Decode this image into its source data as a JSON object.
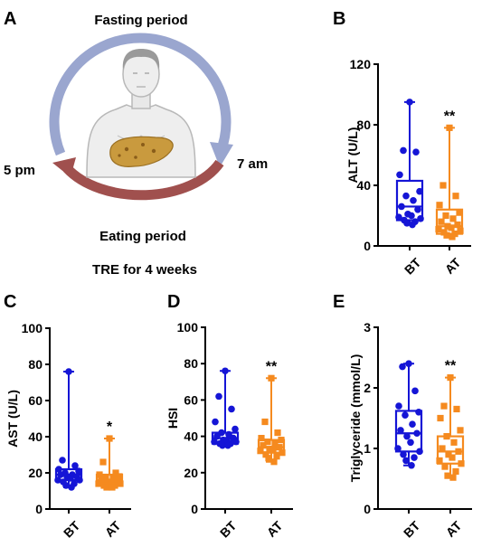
{
  "panels": {
    "a": {
      "letter": "A",
      "top_label": "Fasting period",
      "right_label": "7 am",
      "left_label": "5 pm",
      "bottom_label": "Eating period",
      "caption": "TRE for 4 weeks"
    }
  },
  "colors": {
    "bt": "#1515d6",
    "at": "#f58a1f",
    "fasting_arrow": "#9aa6cf",
    "eating_arrow": "#a0504e",
    "liver": "#c99a3e"
  },
  "chart_data": [
    {
      "id": "b",
      "letter": "B",
      "type": "box",
      "ylabel": "ALT (U/L)",
      "ylim": [
        0,
        120
      ],
      "yticks": [
        0,
        40,
        80,
        120
      ],
      "categories": [
        "BT",
        "AT"
      ],
      "significance": "**",
      "grid": false,
      "boxes": [
        {
          "name": "BT",
          "min": 14,
          "q1": 17,
          "median": 26,
          "q3": 43,
          "max": 95,
          "points": [
            95,
            63,
            62,
            47,
            36,
            33,
            30,
            26,
            24,
            21,
            20,
            19,
            18,
            17,
            16,
            15,
            14
          ]
        },
        {
          "name": "AT",
          "min": 6,
          "q1": 8,
          "median": 13,
          "q3": 24,
          "max": 78,
          "points": [
            78,
            40,
            33,
            27,
            22,
            20,
            18,
            16,
            14,
            13,
            12,
            11,
            10,
            9,
            8,
            7,
            6
          ]
        }
      ]
    },
    {
      "id": "c",
      "letter": "C",
      "type": "box",
      "ylabel": "AST (U/L)",
      "ylim": [
        0,
        100
      ],
      "yticks": [
        0,
        20,
        40,
        60,
        80,
        100
      ],
      "categories": [
        "BT",
        "AT"
      ],
      "significance": "*",
      "grid": false,
      "boxes": [
        {
          "name": "BT",
          "min": 12,
          "q1": 16,
          "median": 19,
          "q3": 22,
          "max": 76,
          "points": [
            76,
            27,
            24,
            22,
            21,
            20,
            19,
            19,
            18,
            18,
            17,
            16,
            16,
            15,
            14,
            13,
            12
          ]
        },
        {
          "name": "AT",
          "min": 12,
          "q1": 13,
          "median": 16,
          "q3": 19,
          "max": 39,
          "points": [
            39,
            26,
            20,
            19,
            18,
            17,
            17,
            16,
            16,
            15,
            15,
            14,
            14,
            13,
            13,
            12,
            12
          ]
        }
      ]
    },
    {
      "id": "d",
      "letter": "D",
      "type": "box",
      "ylabel": "HSI",
      "ylim": [
        0,
        100
      ],
      "yticks": [
        0,
        20,
        40,
        60,
        80,
        100
      ],
      "categories": [
        "BT",
        "AT"
      ],
      "significance": "**",
      "grid": false,
      "boxes": [
        {
          "name": "BT",
          "min": 35,
          "q1": 36,
          "median": 39,
          "q3": 42,
          "max": 76,
          "points": [
            76,
            62,
            55,
            48,
            44,
            42,
            41,
            40,
            39,
            38,
            38,
            37,
            37,
            36,
            36,
            35,
            35
          ]
        },
        {
          "name": "AT",
          "min": 26,
          "q1": 31,
          "median": 34,
          "q3": 38,
          "max": 72,
          "points": [
            72,
            48,
            42,
            39,
            38,
            37,
            36,
            35,
            34,
            33,
            33,
            32,
            31,
            30,
            29,
            28,
            26
          ]
        }
      ]
    },
    {
      "id": "e",
      "letter": "E",
      "type": "box",
      "ylabel": "Triglyceride (mmol/L)",
      "ylim": [
        0,
        3
      ],
      "yticks": [
        0,
        1,
        2,
        3
      ],
      "categories": [
        "BT",
        "AT"
      ],
      "significance": "**",
      "grid": false,
      "boxes": [
        {
          "name": "BT",
          "min": 0.72,
          "q1": 0.95,
          "median": 1.25,
          "q3": 1.62,
          "max": 2.4,
          "points": [
            2.4,
            2.35,
            1.95,
            1.7,
            1.6,
            1.55,
            1.4,
            1.3,
            1.25,
            1.2,
            1.1,
            1.0,
            0.95,
            0.9,
            0.85,
            0.8,
            0.72
          ]
        },
        {
          "name": "AT",
          "min": 0.52,
          "q1": 0.75,
          "median": 0.95,
          "q3": 1.2,
          "max": 2.17,
          "points": [
            2.17,
            1.7,
            1.65,
            1.5,
            1.3,
            1.2,
            1.1,
            1.0,
            0.95,
            0.9,
            0.85,
            0.8,
            0.75,
            0.7,
            0.62,
            0.55,
            0.52
          ]
        }
      ]
    }
  ]
}
